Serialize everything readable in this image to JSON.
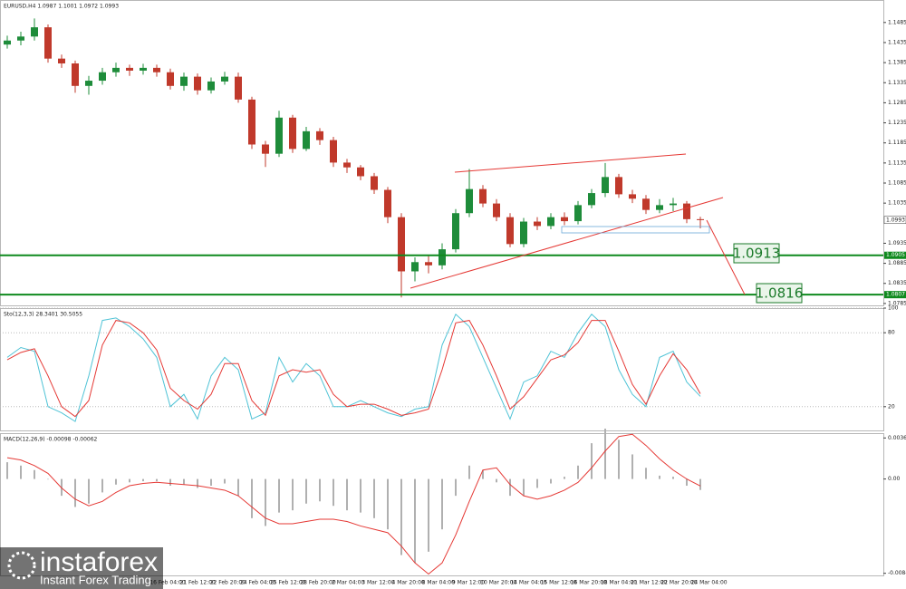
{
  "chart_data": [
    {
      "type": "candlestick",
      "title": "EURUSD,H4  1.0987 1.1001 1.0972 1.0993",
      "open": [
        1.143,
        1.144,
        1.145,
        1.1473,
        1.1395,
        1.1383,
        1.1327,
        1.134,
        1.1361,
        1.1372,
        1.1365,
        1.1372,
        1.1361,
        1.1327,
        1.135,
        1.1316,
        1.1338,
        1.135,
        1.1293,
        1.1181,
        1.1158,
        1.1248,
        1.117,
        1.1214,
        1.1192,
        1.1136,
        1.1124,
        1.1102,
        1.1068,
        1.1,
        1.0865,
        1.0888,
        1.088,
        1.092,
        1.101,
        1.107,
        1.1034,
        1.1,
        1.0933,
        1.0989,
        1.0978,
        1.1,
        1.099,
        1.103,
        1.106,
        1.11,
        1.1057,
        1.1046,
        1.1018,
        1.103,
        1.1034,
        1.0995
      ],
      "high": [
        1.1452,
        1.1462,
        1.1495,
        1.148,
        1.1405,
        1.139,
        1.1352,
        1.1372,
        1.1385,
        1.138,
        1.1382,
        1.138,
        1.137,
        1.136,
        1.1358,
        1.1348,
        1.1362,
        1.136,
        1.13,
        1.119,
        1.1265,
        1.1255,
        1.1225,
        1.1222,
        1.12,
        1.1145,
        1.113,
        1.111,
        1.1075,
        1.101,
        1.09,
        1.0905,
        1.0935,
        1.102,
        1.112,
        1.108,
        1.1045,
        1.101,
        1.0998,
        1.1,
        1.101,
        1.1012,
        1.104,
        1.107,
        1.1135,
        1.1108,
        1.1068,
        1.1055,
        1.1045,
        1.1048,
        1.104,
        1.1001
      ],
      "low": [
        1.142,
        1.1428,
        1.144,
        1.1385,
        1.1372,
        1.131,
        1.1305,
        1.133,
        1.135,
        1.1352,
        1.1355,
        1.135,
        1.1318,
        1.1315,
        1.1305,
        1.1308,
        1.133,
        1.1285,
        1.117,
        1.1125,
        1.115,
        1.116,
        1.1165,
        1.118,
        1.1125,
        1.111,
        1.1092,
        1.1058,
        1.0985,
        1.08,
        1.084,
        1.086,
        1.087,
        1.0912,
        1.1,
        1.1025,
        1.099,
        1.0925,
        1.0925,
        1.0968,
        1.097,
        1.098,
        1.0982,
        1.1022,
        1.105,
        1.1048,
        1.1035,
        1.1008,
        1.101,
        1.1015,
        1.0985,
        1.0972
      ],
      "close": [
        1.144,
        1.145,
        1.1473,
        1.1395,
        1.1383,
        1.1327,
        1.134,
        1.1361,
        1.1372,
        1.1365,
        1.1372,
        1.1361,
        1.1327,
        1.135,
        1.1316,
        1.1338,
        1.135,
        1.1293,
        1.1181,
        1.1158,
        1.1248,
        1.117,
        1.1214,
        1.1192,
        1.1136,
        1.1124,
        1.1102,
        1.1068,
        1.1,
        1.0865,
        1.0888,
        1.088,
        1.092,
        1.101,
        1.107,
        1.1034,
        1.1,
        1.0933,
        1.0989,
        1.0978,
        1.1,
        1.099,
        1.103,
        1.106,
        1.11,
        1.1057,
        1.1046,
        1.1018,
        1.103,
        1.1034,
        1.0995,
        1.0993
      ],
      "up_color": "#1e8c3a",
      "down_color": "#c0392b",
      "ylim": [
        1.0778,
        1.1541
      ],
      "yticks": [
        1.1485,
        1.1435,
        1.1385,
        1.1335,
        1.1285,
        1.1235,
        1.1185,
        1.1135,
        1.1085,
        1.1035,
        1.0935,
        1.0885,
        1.0835,
        1.0785
      ],
      "levels": [
        1.0905,
        1.0807
      ],
      "level_color": "#0f8a1e",
      "current": 1.0993,
      "annotations": [
        "1.0913",
        "1.0816"
      ],
      "x_labels": [
        "16 Feb 04:00",
        "21 Feb 12:00",
        "22 Feb 20:00",
        "24 Feb 04:00",
        "25 Feb 12:00",
        "28 Feb 20:00",
        "2 Mar 04:00",
        "3 Mar 12:00",
        "4 Mar 20:00",
        "8 Mar 04:00",
        "9 Mar 12:00",
        "10 Mar 20:00",
        "14 Mar 04:00",
        "15 Mar 12:00",
        "16 Mar 20:00",
        "18 Mar 04:00",
        "21 Mar 12:00",
        "22 Mar 20:00",
        "24 Mar 04:00"
      ]
    },
    {
      "type": "line",
      "title": "Sto(12,3,3) 28.3401 30.5055",
      "ylim": [
        0,
        100
      ],
      "yticks": [
        100,
        80,
        20
      ],
      "grid": true,
      "series": [
        {
          "color": "#4fc3d6",
          "values": [
            60,
            68,
            65,
            20,
            15,
            8,
            45,
            90,
            92,
            85,
            75,
            60,
            20,
            30,
            10,
            45,
            60,
            50,
            10,
            15,
            60,
            40,
            55,
            45,
            20,
            20,
            25,
            20,
            15,
            12,
            18,
            20,
            70,
            95,
            85,
            60,
            35,
            10,
            40,
            45,
            65,
            60,
            80,
            95,
            85,
            50,
            30,
            20,
            60,
            65,
            40,
            28.34
          ]
        },
        {
          "color": "#e53935",
          "values": [
            58,
            64,
            67,
            45,
            20,
            12,
            25,
            70,
            90,
            88,
            80,
            66,
            35,
            25,
            18,
            30,
            55,
            55,
            25,
            13,
            45,
            50,
            48,
            50,
            30,
            20,
            22,
            22,
            18,
            13,
            15,
            18,
            50,
            88,
            90,
            70,
            45,
            18,
            28,
            43,
            58,
            62,
            72,
            90,
            90,
            65,
            38,
            22,
            45,
            63,
            50,
            30.51
          ]
        }
      ]
    },
    {
      "type": "bar",
      "title": "MACD(12,26,9) -0.00098 -0.00062",
      "ylim": [
        -0.0087,
        0.0041
      ],
      "yticks": [
        0.00367,
        {
          "value": 0,
          "label": "0.00"
        },
        -0.00843
      ],
      "color": "#b0b0b0",
      "values": [
        0.0015,
        0.0012,
        0.0008,
        0.0,
        -0.0015,
        -0.0025,
        -0.0022,
        -0.0012,
        -0.0005,
        -0.0003,
        -0.0002,
        -0.0002,
        -0.0006,
        -0.0005,
        -0.0008,
        -0.0006,
        -0.0004,
        -0.0015,
        -0.0035,
        -0.0042,
        -0.003,
        -0.0028,
        -0.0022,
        -0.002,
        -0.0024,
        -0.0028,
        -0.003,
        -0.0035,
        -0.0045,
        -0.0068,
        -0.0075,
        -0.0065,
        -0.0045,
        -0.0015,
        0.0012,
        0.0008,
        -0.0003,
        -0.0015,
        -0.0015,
        -0.0008,
        -0.0004,
        0.0002,
        0.0012,
        0.0032,
        0.0045,
        0.0035,
        0.0022,
        0.001,
        0.0003,
        0.0002,
        -0.0006,
        -0.00098
      ],
      "line_series": {
        "color": "#e53935",
        "values": [
          0.0019,
          0.0017,
          0.0012,
          0.0005,
          -0.0008,
          -0.0018,
          -0.0024,
          -0.002,
          -0.0012,
          -0.0006,
          -0.0004,
          -0.0003,
          -0.0004,
          -0.0005,
          -0.0006,
          -0.0008,
          -0.001,
          -0.0015,
          -0.0025,
          -0.0035,
          -0.004,
          -0.004,
          -0.0038,
          -0.0036,
          -0.0036,
          -0.0038,
          -0.0042,
          -0.0045,
          -0.0048,
          -0.006,
          -0.0075,
          -0.0085,
          -0.0075,
          -0.005,
          -0.002,
          0.0008,
          0.001,
          -0.0005,
          -0.0015,
          -0.0018,
          -0.0015,
          -0.001,
          -0.0003,
          0.001,
          0.0025,
          0.0038,
          0.004,
          0.003,
          0.0018,
          0.0008,
          0.0,
          -0.00062
        ]
      }
    }
  ],
  "logo": {
    "name": "instaforex",
    "tagline": "Instant Forex Trading"
  }
}
